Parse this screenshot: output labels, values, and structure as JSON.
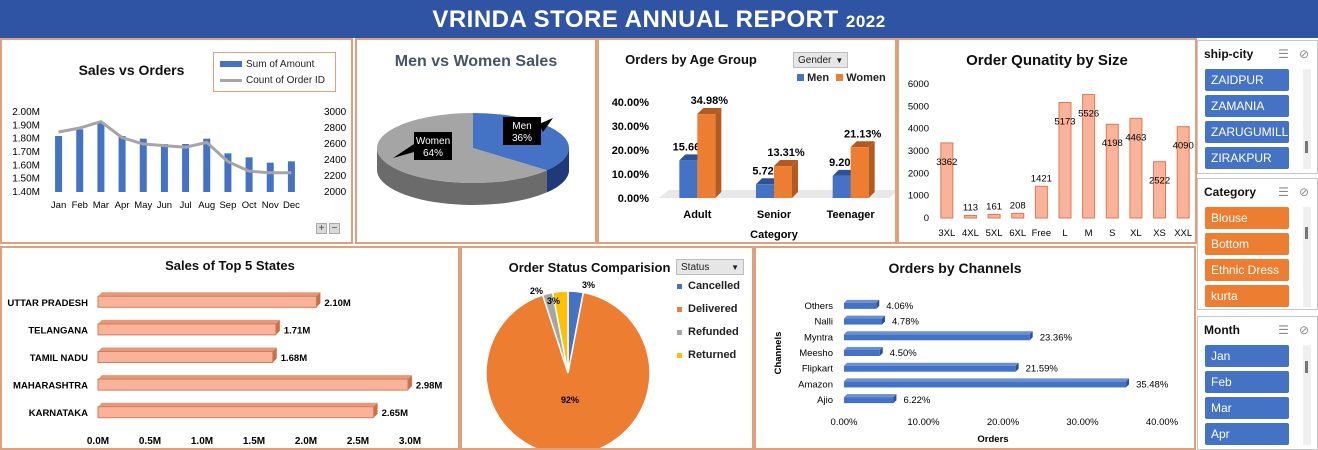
{
  "banner": {
    "title": "VRINDA STORE ANNUAL REPORT",
    "year": "2022"
  },
  "colors": {
    "blue": "#4472c4",
    "orange": "#ed7d31",
    "gray": "#a5a5a5",
    "yellow": "#ffc000",
    "salmon": "#f8b39a",
    "navy": "#2f54a4"
  },
  "chart_data": [
    {
      "id": "sales_vs_orders",
      "type": "bar",
      "title": "Sales vs Orders",
      "categories": [
        "Jan",
        "Feb",
        "Mar",
        "Apr",
        "May",
        "Jun",
        "Jul",
        "Aug",
        "Sep",
        "Oct",
        "Nov",
        "Dec"
      ],
      "series": [
        {
          "name": "Sum of Amount",
          "type": "bar",
          "axis": "left",
          "values": [
            1.82,
            1.87,
            1.92,
            1.82,
            1.8,
            1.76,
            1.76,
            1.8,
            1.69,
            1.66,
            1.62,
            1.63
          ]
        },
        {
          "name": "Count of Order ID",
          "type": "line",
          "axis": "right",
          "values": [
            2750,
            2800,
            2880,
            2680,
            2600,
            2580,
            2560,
            2620,
            2380,
            2260,
            2240,
            2240
          ]
        }
      ],
      "y_left": {
        "ticks": [
          "2.00M",
          "1.90M",
          "1.80M",
          "1.70M",
          "1.60M",
          "1.50M",
          "1.40M"
        ],
        "range": [
          1.4,
          2.0
        ]
      },
      "y_right": {
        "ticks": [
          "3000",
          "2800",
          "2600",
          "2400",
          "2200",
          "2000"
        ],
        "range": [
          2000,
          3000
        ]
      }
    },
    {
      "id": "men_vs_women",
      "type": "pie",
      "title": "Men vs Women Sales",
      "slices": [
        {
          "label": "Men",
          "percent_label": "36%",
          "value": 36
        },
        {
          "label": "Women",
          "percent_label": "64%",
          "value": 64
        }
      ]
    },
    {
      "id": "orders_by_age",
      "type": "bar",
      "title": "Orders by Age Group",
      "filter": "Gender",
      "xlabel": "Category",
      "categories": [
        "Adult",
        "Senior",
        "Teenager"
      ],
      "series": [
        {
          "name": "Men",
          "values": [
            15.66,
            5.72,
            9.2
          ],
          "labels": [
            "15.66%",
            "5.72%",
            "9.20%"
          ]
        },
        {
          "name": "Women",
          "values": [
            34.98,
            13.31,
            21.13
          ],
          "labels": [
            "34.98%",
            "13.31%",
            "21.13%"
          ]
        }
      ],
      "y_ticks": [
        "40.00%",
        "30.00%",
        "20.00%",
        "10.00%",
        "0.00%"
      ],
      "ylim": [
        0,
        40
      ]
    },
    {
      "id": "qty_by_size",
      "type": "bar",
      "title": "Order Qunatity by Size",
      "categories": [
        "3XL",
        "4XL",
        "5XL",
        "6XL",
        "Free",
        "L",
        "M",
        "S",
        "XL",
        "XS",
        "XXL"
      ],
      "values": [
        3362,
        113,
        161,
        208,
        1421,
        5173,
        5526,
        4198,
        4463,
        2522,
        4090
      ],
      "y_ticks": [
        "6000",
        "5000",
        "4000",
        "3000",
        "2000",
        "1000",
        "0"
      ],
      "ylim": [
        0,
        6000
      ]
    },
    {
      "id": "top5_states",
      "type": "bar",
      "orientation": "horizontal",
      "title": "Sales of Top 5 States",
      "categories": [
        "UTTAR PRADESH",
        "TELANGANA",
        "TAMIL NADU",
        "MAHARASHTRA",
        "KARNATAKA"
      ],
      "values": [
        2.1,
        1.71,
        1.68,
        2.98,
        2.65
      ],
      "labels": [
        "2.10M",
        "1.71M",
        "1.68M",
        "2.98M",
        "2.65M"
      ],
      "x_ticks": [
        "0.0M",
        "0.5M",
        "1.0M",
        "1.5M",
        "2.0M",
        "2.5M",
        "3.0M"
      ],
      "xlim": [
        0,
        3
      ]
    },
    {
      "id": "order_status",
      "type": "pie",
      "title": "Order Status Comparision",
      "filter": "Status",
      "slices": [
        {
          "label": "Cancelled",
          "value": 3,
          "percent_label": "3%"
        },
        {
          "label": "Delivered",
          "value": 92,
          "percent_label": "92%"
        },
        {
          "label": "Refunded",
          "value": 2,
          "percent_label": "2%"
        },
        {
          "label": "Returned",
          "value": 3,
          "percent_label": "3%"
        }
      ]
    },
    {
      "id": "orders_by_channels",
      "type": "bar",
      "orientation": "horizontal",
      "title": "Orders by Channels",
      "xlabel": "Orders",
      "ylabel": "Channels",
      "categories": [
        "Others",
        "Nalli",
        "Myntra",
        "Meesho",
        "Flipkart",
        "Amazon",
        "Ajio"
      ],
      "values": [
        4.06,
        4.78,
        23.36,
        4.5,
        21.59,
        35.48,
        6.22
      ],
      "labels": [
        "4.06%",
        "4.78%",
        "23.36%",
        "4.50%",
        "21.59%",
        "35.48%",
        "6.22%"
      ],
      "x_ticks": [
        "0.00%",
        "10.00%",
        "20.00%",
        "30.00%",
        "40.00%"
      ],
      "xlim": [
        0,
        40
      ]
    }
  ],
  "slicers": [
    {
      "title": "ship-city",
      "items": [
        "ZAIDPUR",
        "ZAMANIA",
        "ZARUGUMILLI",
        "ZIRAKPUR"
      ],
      "color": "#4472c4"
    },
    {
      "title": "Category",
      "items": [
        "Blouse",
        "Bottom",
        "Ethnic Dress",
        "kurta"
      ],
      "color": "#ed7d31"
    },
    {
      "title": "Month",
      "items": [
        "Jan",
        "Feb",
        "Mar",
        "Apr"
      ],
      "color": "#4472c4"
    }
  ]
}
